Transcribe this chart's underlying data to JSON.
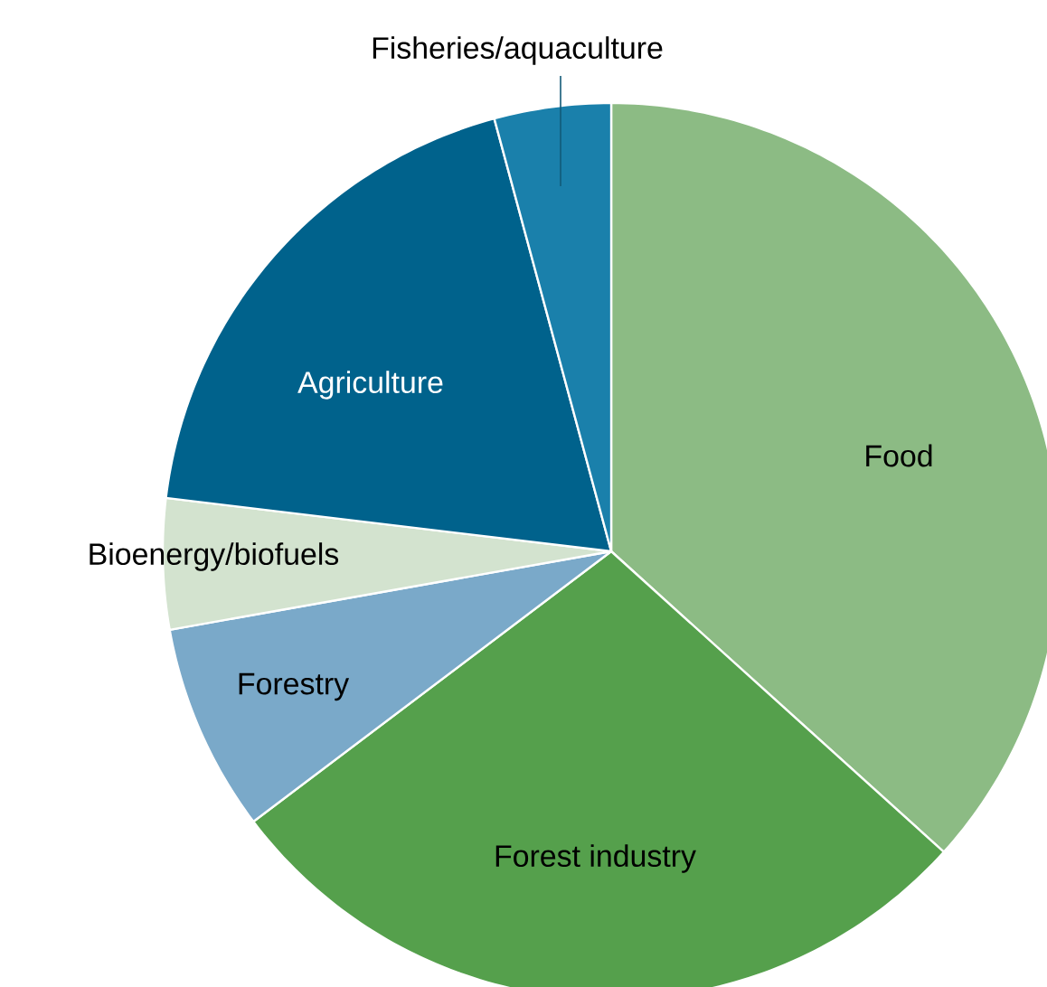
{
  "chart_data": {
    "type": "pie",
    "categories": [
      "Food",
      "Forest industry",
      "Forestry",
      "Bioenergy/biofuels",
      "Agriculture",
      "Fisheries/aquaculture"
    ],
    "values": [
      36.7,
      28.0,
      7.5,
      4.7,
      18.9,
      4.2
    ],
    "colors": [
      "#8cbb84",
      "#55a04c",
      "#7aa9c9",
      "#d3e3cf",
      "#00628c",
      "#1a80ab"
    ]
  }
}
